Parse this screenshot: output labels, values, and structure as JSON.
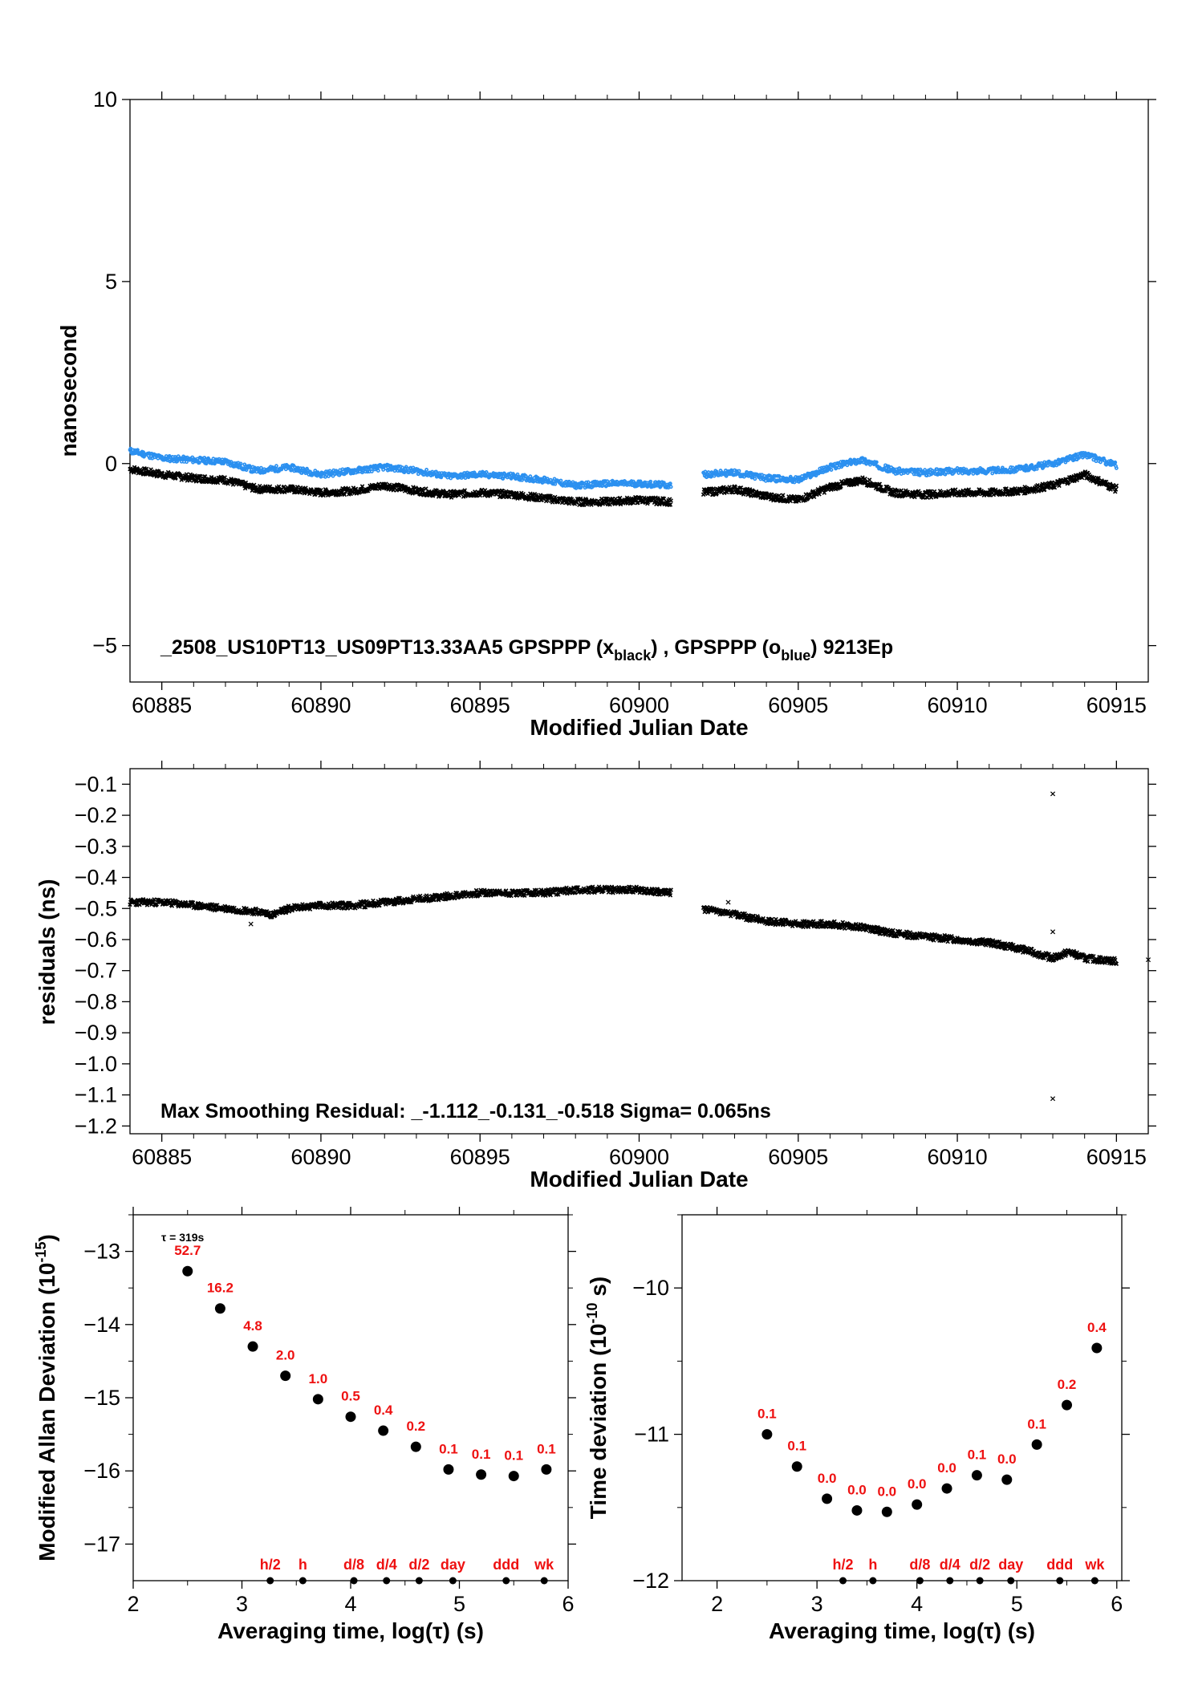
{
  "chart_data": [
    {
      "type": "scatter",
      "xlabel": "Modified Julian Date",
      "ylabel": "nanosecond",
      "xlim": [
        60884,
        60916
      ],
      "ylim": [
        -6,
        10
      ],
      "x_ticks": [
        60885,
        60890,
        60895,
        60900,
        60905,
        60910,
        60915
      ],
      "x_tick_labels": [
        "60885",
        "60890",
        "60895",
        "60900",
        "60905",
        "60910",
        "60915"
      ],
      "y_ticks": [
        -5,
        0,
        5,
        10
      ],
      "y_tick_labels": [
        "−5",
        "0",
        "5",
        "10"
      ],
      "annotation": {
        "prefix": "_2508_US10PT13_US09PT13.33AA5     GPSPPP (x",
        "sub1": "black",
        "mid": ") ,  GPSPPP (o",
        "sub2": "blue",
        "suffix": ")  9213Ep"
      },
      "colors": {
        "black": "#000000",
        "blue": "#2b90f0"
      },
      "series": [
        {
          "name": "GPSPPP (x black)",
          "color": "#000000",
          "marker": "x",
          "x": [
            60884.0,
            60885.0,
            60886.0,
            60887.0,
            60888.0,
            60889.0,
            60890.0,
            60891.0,
            60892.0,
            60893.0,
            60894.0,
            60895.0,
            60896.0,
            60897.0,
            60898.0,
            60899.0,
            60900.0,
            60901.0,
            60902.0,
            60903.0,
            60904.0,
            60905.0,
            60906.0,
            60907.0,
            60908.0,
            60909.0,
            60910.0,
            60911.0,
            60912.0,
            60913.0,
            60914.0,
            60915.0
          ],
          "y": [
            -0.15,
            -0.3,
            -0.4,
            -0.45,
            -0.7,
            -0.7,
            -0.8,
            -0.75,
            -0.6,
            -0.75,
            -0.85,
            -0.8,
            -0.85,
            -0.95,
            -1.05,
            -1.05,
            -1.0,
            -1.05,
            -0.8,
            -0.7,
            -0.9,
            -1.0,
            -0.65,
            -0.45,
            -0.8,
            -0.85,
            -0.8,
            -0.8,
            -0.75,
            -0.6,
            -0.3,
            -0.7
          ]
        },
        {
          "name": "GPSPPP (o blue)",
          "color": "#2b90f0",
          "marker": "o",
          "x": [
            60884.0,
            60885.0,
            60886.0,
            60887.0,
            60888.0,
            60889.0,
            60890.0,
            60891.0,
            60892.0,
            60893.0,
            60894.0,
            60895.0,
            60896.0,
            60897.0,
            60898.0,
            60899.0,
            60900.0,
            60901.0,
            60902.0,
            60903.0,
            60904.0,
            60905.0,
            60906.0,
            60907.0,
            60908.0,
            60909.0,
            60910.0,
            60911.0,
            60912.0,
            60913.0,
            60914.0,
            60915.0
          ],
          "y": [
            0.35,
            0.15,
            0.1,
            0.05,
            -0.2,
            -0.1,
            -0.3,
            -0.2,
            -0.1,
            -0.2,
            -0.35,
            -0.3,
            -0.35,
            -0.45,
            -0.6,
            -0.55,
            -0.55,
            -0.6,
            -0.3,
            -0.25,
            -0.4,
            -0.45,
            -0.1,
            0.1,
            -0.2,
            -0.25,
            -0.2,
            -0.2,
            -0.15,
            0.0,
            0.25,
            -0.05
          ]
        }
      ]
    },
    {
      "type": "scatter",
      "xlabel": "Modified Julian Date",
      "ylabel": "residuals (ns)",
      "xlim": [
        60884,
        60916
      ],
      "ylim": [
        -1.225,
        -0.05
      ],
      "x_ticks": [
        60885,
        60890,
        60895,
        60900,
        60905,
        60910,
        60915
      ],
      "x_tick_labels": [
        "60885",
        "60890",
        "60895",
        "60900",
        "60905",
        "60910",
        "60915"
      ],
      "y_ticks": [
        -0.1,
        -0.2,
        -0.3,
        -0.4,
        -0.5,
        -0.6,
        -0.7,
        -0.8,
        -0.9,
        -1.0,
        -1.1,
        -1.2
      ],
      "y_tick_labels": [
        "−0.1",
        "−0.2",
        "−0.3",
        "−0.4",
        "−0.5",
        "−0.6",
        "−0.7",
        "−0.8",
        "−0.9",
        "−1.0",
        "−1.1",
        "−1.2"
      ],
      "annotation": "Max Smoothing Residual: _-1.112_-0.131_-0.518  Sigma= 0.065ns",
      "series": [
        {
          "name": "",
          "color": "#000000",
          "marker": "x",
          "x": [
            60884.0,
            60885.0,
            60886.0,
            60887.0,
            60888.0,
            60888.5,
            60889.0,
            60890.0,
            60891.0,
            60892.0,
            60893.0,
            60894.0,
            60895.0,
            60896.0,
            60897.0,
            60898.0,
            60899.0,
            60900.0,
            60901.0,
            60902.0,
            60903.0,
            60904.0,
            60905.0,
            60906.0,
            60907.0,
            60908.0,
            60909.0,
            60910.0,
            60911.0,
            60912.0,
            60913.0,
            60913.5,
            60914.0,
            60915.0
          ],
          "y": [
            -0.48,
            -0.48,
            -0.49,
            -0.5,
            -0.51,
            -0.52,
            -0.5,
            -0.49,
            -0.49,
            -0.48,
            -0.47,
            -0.46,
            -0.45,
            -0.45,
            -0.45,
            -0.44,
            -0.44,
            -0.44,
            -0.45,
            -0.5,
            -0.52,
            -0.54,
            -0.55,
            -0.55,
            -0.56,
            -0.58,
            -0.59,
            -0.6,
            -0.61,
            -0.63,
            -0.66,
            -0.64,
            -0.66,
            -0.67
          ]
        },
        {
          "name": "",
          "color": "#000000",
          "marker": "x",
          "x": [
            60887.8,
            60902.8,
            60913.0,
            60913.0,
            60913.0,
            60916.0
          ],
          "y": [
            -0.55,
            -0.48,
            -0.131,
            -0.575,
            -1.112,
            -0.665
          ]
        }
      ]
    },
    {
      "type": "scatter",
      "xlabel": "Averaging time, log(τ) (s)",
      "ylabel_main": "Modified Allan Deviation (10",
      "ylabel_exp": "-15",
      "ylabel_end": ")",
      "xlim": [
        2,
        6
      ],
      "ylim": [
        -17.5,
        -12.5
      ],
      "x_ticks": [
        2,
        3,
        4,
        5,
        6
      ],
      "x_tick_labels": [
        "2",
        "3",
        "4",
        "5",
        "6"
      ],
      "y_ticks": [
        -13,
        -14,
        -15,
        -16,
        -17
      ],
      "y_tick_labels": [
        "−13",
        "−14",
        "−15",
        "−16",
        "−17"
      ],
      "tau_label": "τ = 319s",
      "x": [
        2.5,
        2.8,
        3.1,
        3.4,
        3.7,
        4.0,
        4.3,
        4.6,
        4.9,
        5.2,
        5.5,
        5.8
      ],
      "y": [
        -13.27,
        -13.78,
        -14.3,
        -14.7,
        -15.02,
        -15.26,
        -15.45,
        -15.67,
        -15.98,
        -16.05,
        -16.07,
        -15.98
      ],
      "labels": [
        "52.7",
        "16.2",
        "4.8",
        "2.0",
        "1.0",
        "0.5",
        "0.4",
        "0.2",
        "0.1",
        "0.1",
        "0.1",
        "0.1"
      ],
      "time_markers": [
        {
          "x": 3.26,
          "label": "h/2"
        },
        {
          "x": 3.56,
          "label": "h"
        },
        {
          "x": 4.03,
          "label": "d/8"
        },
        {
          "x": 4.33,
          "label": "d/4"
        },
        {
          "x": 4.63,
          "label": "d/2"
        },
        {
          "x": 4.94,
          "label": "day"
        },
        {
          "x": 5.43,
          "label": "ddd"
        },
        {
          "x": 5.78,
          "label": "wk"
        }
      ]
    },
    {
      "type": "scatter",
      "xlabel": "Averaging time, log(τ) (s)",
      "ylabel_main": "Time deviation (10",
      "ylabel_exp": "-10",
      "ylabel_end": " s)",
      "xlim": [
        1.65,
        6.05
      ],
      "ylim": [
        -12,
        -9.5
      ],
      "x_ticks": [
        2,
        3,
        4,
        5,
        6
      ],
      "x_tick_labels": [
        "2",
        "3",
        "4",
        "5",
        "6"
      ],
      "y_ticks": [
        -10,
        -11,
        -12
      ],
      "y_tick_labels": [
        "−10",
        "−11",
        "−12"
      ],
      "x": [
        2.5,
        2.8,
        3.1,
        3.4,
        3.7,
        4.0,
        4.3,
        4.6,
        4.9,
        5.2,
        5.5,
        5.8
      ],
      "y": [
        -11.0,
        -11.22,
        -11.44,
        -11.52,
        -11.53,
        -11.48,
        -11.37,
        -11.28,
        -11.31,
        -11.07,
        -10.8,
        -10.41
      ],
      "labels": [
        "0.1",
        "0.1",
        "0.0",
        "0.0",
        "0.0",
        "0.0",
        "0.0",
        "0.1",
        "0.0",
        "0.1",
        "0.2",
        "0.4"
      ],
      "time_markers": [
        {
          "x": 3.26,
          "label": "h/2"
        },
        {
          "x": 3.56,
          "label": "h"
        },
        {
          "x": 4.03,
          "label": "d/8"
        },
        {
          "x": 4.33,
          "label": "d/4"
        },
        {
          "x": 4.63,
          "label": "d/2"
        },
        {
          "x": 4.94,
          "label": "day"
        },
        {
          "x": 5.43,
          "label": "ddd"
        },
        {
          "x": 5.78,
          "label": "wk"
        }
      ]
    }
  ]
}
